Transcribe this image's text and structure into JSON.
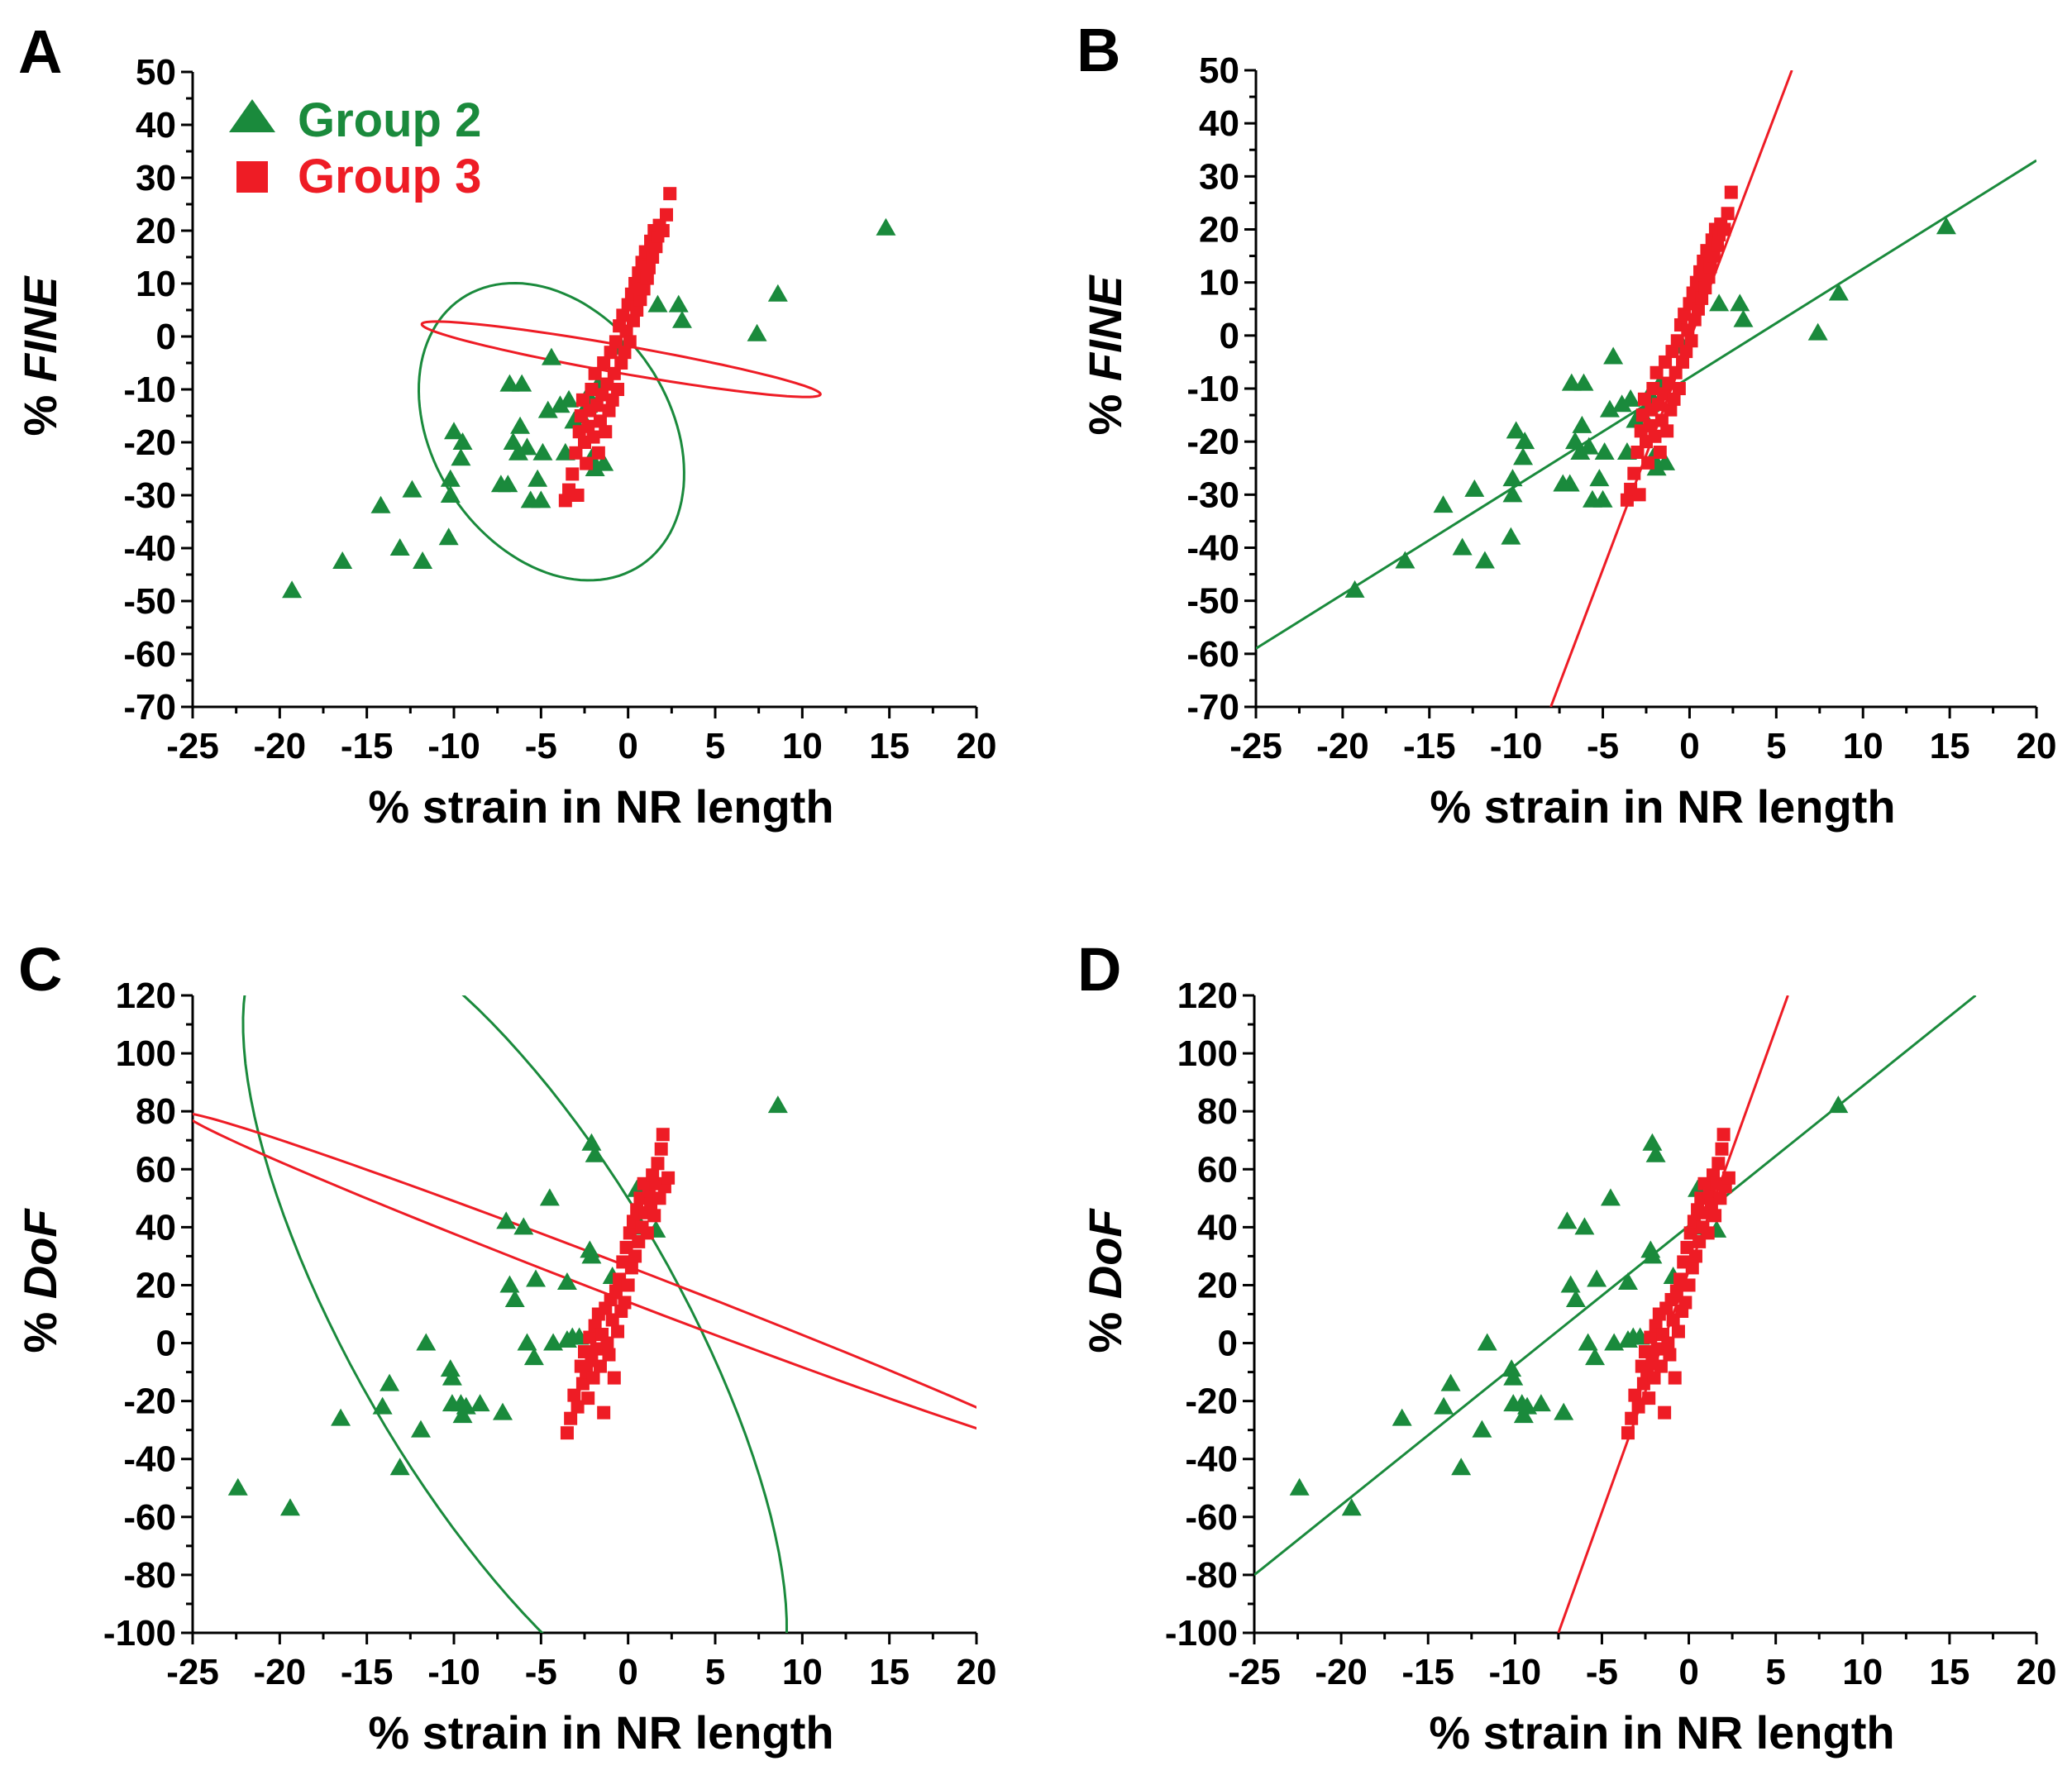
{
  "colors": {
    "group2": "#1a8a3c",
    "group3": "#ee1c25",
    "axis": "#000000"
  },
  "legend": [
    {
      "name": "Group 2",
      "marker": "triangle",
      "color": "#1a8a3c"
    },
    {
      "name": "Group 3",
      "marker": "square",
      "color": "#ee1c25"
    }
  ],
  "chart_data": [
    {
      "panel": "A",
      "type": "scatter",
      "xlabel": "% strain in NR length",
      "ylabel": "% FINE",
      "xlim": [
        -25,
        20
      ],
      "ylim": [
        -70,
        50
      ],
      "xticks": [
        -25,
        -20,
        -15,
        -10,
        -5,
        0,
        5,
        10,
        15,
        20
      ],
      "yticks": [
        50,
        40,
        30,
        20,
        10,
        0,
        -10,
        -20,
        -30,
        -40,
        -50,
        -60,
        -70
      ],
      "show_legend": true,
      "overlay": "ellipse",
      "series": [
        {
          "name": "Group 2",
          "marker": "triangle",
          "points": [
            [
              -19.3,
              -48
            ],
            [
              -16.4,
              -42.5
            ],
            [
              -14.2,
              -32
            ],
            [
              -13.1,
              -40
            ],
            [
              -12.4,
              -29
            ],
            [
              -11.8,
              -42.5
            ],
            [
              -10.3,
              -38
            ],
            [
              -10.2,
              -27
            ],
            [
              -10.2,
              -30
            ],
            [
              -10,
              -18
            ],
            [
              -9.6,
              -23
            ],
            [
              -9.5,
              -20
            ],
            [
              -7.3,
              -28
            ],
            [
              -6.9,
              -28
            ],
            [
              -6.8,
              -9
            ],
            [
              -6.6,
              -20
            ],
            [
              -6.3,
              -22
            ],
            [
              -6.2,
              -17
            ],
            [
              -6.1,
              -9
            ],
            [
              -5.8,
              -21
            ],
            [
              -5.6,
              -31
            ],
            [
              -5.2,
              -27
            ],
            [
              -5,
              -31
            ],
            [
              -4.9,
              -22
            ],
            [
              -4.6,
              -14
            ],
            [
              -4.4,
              -4
            ],
            [
              -3.9,
              -13
            ],
            [
              -3.6,
              -22
            ],
            [
              -3.4,
              -12
            ],
            [
              -3.1,
              -16
            ],
            [
              -2.7,
              -15
            ],
            [
              -2.3,
              -11
            ],
            [
              -2.3,
              -13
            ],
            [
              -2.1,
              -23
            ],
            [
              -1.9,
              -25
            ],
            [
              -1.7,
              -9
            ],
            [
              -1.4,
              -24
            ],
            [
              -0.4,
              -2
            ],
            [
              1.7,
              6
            ],
            [
              2.9,
              6
            ],
            [
              3.1,
              3
            ],
            [
              7.4,
              0.5
            ],
            [
              8.6,
              8
            ],
            [
              14.8,
              20.5
            ]
          ]
        },
        {
          "name": "Group 3",
          "marker": "square",
          "points": [
            [
              -3.6,
              -31
            ],
            [
              -3.4,
              -29
            ],
            [
              -3.2,
              -26
            ],
            [
              -3,
              -22
            ],
            [
              -2.9,
              -30
            ],
            [
              -2.8,
              -18
            ],
            [
              -2.7,
              -15
            ],
            [
              -2.6,
              -12
            ],
            [
              -2.5,
              -20
            ],
            [
              -2.4,
              -24
            ],
            [
              -2.3,
              -17
            ],
            [
              -2.2,
              -14
            ],
            [
              -2.1,
              -10
            ],
            [
              -2,
              -19
            ],
            [
              -1.9,
              -7
            ],
            [
              -1.8,
              -13
            ],
            [
              -1.7,
              -22
            ],
            [
              -1.6,
              -16
            ],
            [
              -1.5,
              -11
            ],
            [
              -1.4,
              -5
            ],
            [
              -1.3,
              -18
            ],
            [
              -1.2,
              -9
            ],
            [
              -1.1,
              -14
            ],
            [
              -1,
              -3
            ],
            [
              -0.9,
              -12
            ],
            [
              -0.8,
              -7
            ],
            [
              -0.7,
              -1
            ],
            [
              -0.6,
              -10
            ],
            [
              -0.5,
              2
            ],
            [
              -0.4,
              -5
            ],
            [
              -0.3,
              4
            ],
            [
              -0.2,
              -3
            ],
            [
              -0.1,
              1
            ],
            [
              0,
              6
            ],
            [
              0.1,
              -1
            ],
            [
              0.2,
              8
            ],
            [
              0.3,
              3
            ],
            [
              0.4,
              10
            ],
            [
              0.5,
              5
            ],
            [
              0.6,
              12
            ],
            [
              0.7,
              7
            ],
            [
              0.8,
              14
            ],
            [
              0.9,
              9
            ],
            [
              1,
              16
            ],
            [
              1.1,
              11
            ],
            [
              1.2,
              13
            ],
            [
              1.3,
              18
            ],
            [
              1.4,
              15
            ],
            [
              1.5,
              20
            ],
            [
              1.6,
              17
            ],
            [
              1.7,
              19
            ],
            [
              1.8,
              21
            ],
            [
              2,
              20
            ],
            [
              2.2,
              23
            ],
            [
              2.4,
              27
            ]
          ]
        }
      ],
      "ellipses": [
        {
          "series": "Group 2",
          "center": [
            -4.4,
            -18
          ],
          "radii": [
            17.8,
            24.3
          ],
          "angle_deg": 34
        },
        {
          "series": "Group 3",
          "center": [
            -0.4,
            -4.3
          ],
          "radii": [
            2.1,
            30.6
          ],
          "angle_deg": 80
        }
      ]
    },
    {
      "panel": "B",
      "type": "scatter",
      "xlabel": "% strain in NR length",
      "ylabel": "% FINE",
      "xlim": [
        -25,
        20
      ],
      "ylim": [
        -70,
        50
      ],
      "xticks": [
        -25,
        -20,
        -15,
        -10,
        -5,
        0,
        5,
        10,
        15,
        20
      ],
      "yticks": [
        50,
        40,
        30,
        20,
        10,
        0,
        -10,
        -20,
        -30,
        -40,
        -50,
        -60,
        -70
      ],
      "show_legend": false,
      "overlay": "fit_line",
      "series_ref": "A",
      "fit_lines": [
        {
          "series": "Group 2",
          "from": [
            -25,
            -59
          ],
          "to": [
            20,
            33
          ]
        },
        {
          "series": "Group 3",
          "from": [
            -8,
            -70
          ],
          "to": [
            5.9,
            50
          ]
        }
      ]
    },
    {
      "panel": "C",
      "type": "scatter",
      "xlabel": "% strain in NR length",
      "ylabel": "% DoF",
      "xlim": [
        -25,
        20
      ],
      "ylim": [
        -100,
        120
      ],
      "xticks": [
        -25,
        -20,
        -15,
        -10,
        -5,
        0,
        5,
        10,
        15,
        20
      ],
      "yticks": [
        120,
        100,
        80,
        60,
        40,
        20,
        0,
        -20,
        -40,
        -60,
        -80,
        -100
      ],
      "show_legend": false,
      "overlay": "ellipse",
      "series": [
        {
          "name": "Group 2",
          "marker": "triangle",
          "points": [
            [
              -22.4,
              -50
            ],
            [
              -19.4,
              -57
            ],
            [
              -16.5,
              -26
            ],
            [
              -14.1,
              -22
            ],
            [
              -13.7,
              -14
            ],
            [
              -13.1,
              -43
            ],
            [
              -11.9,
              -30
            ],
            [
              -11.6,
              0
            ],
            [
              -10.2,
              -9
            ],
            [
              -10.1,
              -21
            ],
            [
              -10.1,
              -12
            ],
            [
              -9.6,
              -21
            ],
            [
              -9.5,
              -25
            ],
            [
              -9.3,
              -22
            ],
            [
              -8.5,
              -21
            ],
            [
              -7.2,
              -24
            ],
            [
              -7,
              42
            ],
            [
              -6.8,
              20
            ],
            [
              -6.5,
              15
            ],
            [
              -6,
              40
            ],
            [
              -5.8,
              0
            ],
            [
              -5.4,
              -5
            ],
            [
              -5.3,
              22
            ],
            [
              -4.5,
              50
            ],
            [
              -4.3,
              0
            ],
            [
              -3.5,
              1
            ],
            [
              -3.5,
              21
            ],
            [
              -3.2,
              2
            ],
            [
              -2.8,
              2
            ],
            [
              -2.2,
              32
            ],
            [
              -2.1,
              30
            ],
            [
              -2.1,
              69
            ],
            [
              -1.9,
              65
            ],
            [
              -0.9,
              23
            ],
            [
              0.5,
              53
            ],
            [
              0.6,
              40
            ],
            [
              1.6,
              39
            ],
            [
              8.6,
              82
            ]
          ]
        },
        {
          "name": "Group 3",
          "marker": "square",
          "points": [
            [
              -3.5,
              -31
            ],
            [
              -3.3,
              -26
            ],
            [
              -3.1,
              -18
            ],
            [
              -2.9,
              -22
            ],
            [
              -2.7,
              -8
            ],
            [
              -2.6,
              -14
            ],
            [
              -2.5,
              -3
            ],
            [
              -2.4,
              -10
            ],
            [
              -2.3,
              -19
            ],
            [
              -2.2,
              2
            ],
            [
              -2.1,
              -6
            ],
            [
              -2,
              -12
            ],
            [
              -1.9,
              6
            ],
            [
              -1.8,
              -2
            ],
            [
              -1.7,
              10
            ],
            [
              -1.6,
              -8
            ],
            [
              -1.5,
              3
            ],
            [
              -1.4,
              -24
            ],
            [
              -1.3,
              12
            ],
            [
              -1.2,
              0
            ],
            [
              -1.1,
              -4
            ],
            [
              -1,
              15
            ],
            [
              -0.9,
              8
            ],
            [
              -0.8,
              -12
            ],
            [
              -0.7,
              18
            ],
            [
              -0.6,
              4
            ],
            [
              -0.5,
              22
            ],
            [
              -0.4,
              11
            ],
            [
              -0.3,
              28
            ],
            [
              -0.2,
              14
            ],
            [
              -0.1,
              33
            ],
            [
              0,
              20
            ],
            [
              0.1,
              38
            ],
            [
              0.2,
              26
            ],
            [
              0.3,
              42
            ],
            [
              0.4,
              30
            ],
            [
              0.5,
              46
            ],
            [
              0.6,
              35
            ],
            [
              0.7,
              50
            ],
            [
              0.8,
              40
            ],
            [
              0.9,
              55
            ],
            [
              1,
              45
            ],
            [
              1.1,
              38
            ],
            [
              1.2,
              52
            ],
            [
              1.3,
              48
            ],
            [
              1.4,
              58
            ],
            [
              1.5,
              44
            ],
            [
              1.6,
              55
            ],
            [
              1.7,
              62
            ],
            [
              1.8,
              50
            ],
            [
              1.9,
              67
            ],
            [
              2,
              72
            ],
            [
              2.1,
              54
            ],
            [
              2.3,
              57
            ]
          ]
        }
      ],
      "ellipses": [
        {
          "series": "Group 2",
          "center": [
            -6.5,
            6
          ],
          "radii": [
            24.6,
            70.3
          ],
          "angle_deg": 30
        },
        {
          "series": "Group 3",
          "center": [
            -0.3,
            21
          ],
          "radii": [
            2.5,
            70.9
          ],
          "angle_deg": 69
        }
      ]
    },
    {
      "panel": "D",
      "type": "scatter",
      "xlabel": "% strain in NR length",
      "ylabel": "% DoF",
      "xlim": [
        -25,
        20
      ],
      "ylim": [
        -100,
        120
      ],
      "xticks": [
        -25,
        -20,
        -15,
        -10,
        -5,
        0,
        5,
        10,
        15,
        20
      ],
      "yticks": [
        120,
        100,
        80,
        60,
        40,
        20,
        0,
        -20,
        -40,
        -60,
        -80,
        -100
      ],
      "show_legend": false,
      "overlay": "fit_line",
      "series_ref": "C",
      "fit_lines": [
        {
          "series": "Group 2",
          "from": [
            -25,
            -80
          ],
          "to": [
            16.5,
            120
          ]
        },
        {
          "series": "Group 3",
          "from": [
            -7.5,
            -100
          ],
          "to": [
            5.7,
            120
          ]
        }
      ]
    }
  ]
}
